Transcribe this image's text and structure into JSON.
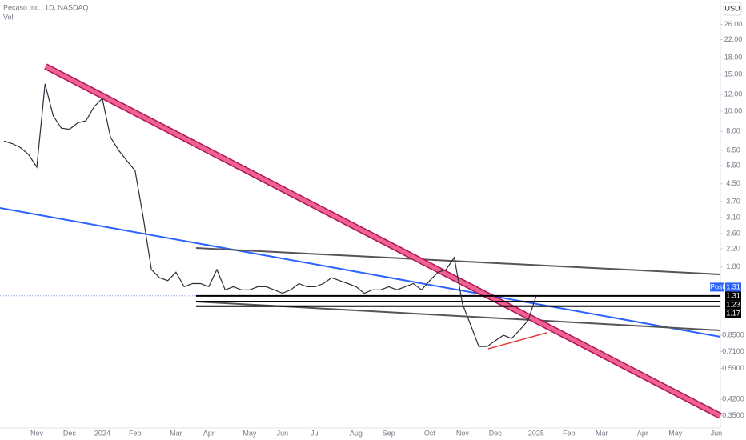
{
  "chart_data": {
    "type": "line",
    "title": "Pecaso Inc., 1D, NASDAQ",
    "subtitle": "Vol",
    "currency": "USD",
    "log_scale": true,
    "color": "#2a2e39",
    "categories": [
      null,
      null,
      null,
      null,
      "Nov",
      null,
      null,
      null,
      "Dec",
      null,
      null,
      null,
      "2024",
      null,
      null,
      null,
      "Feb",
      null,
      null,
      null,
      null,
      "Mar",
      null,
      null,
      null,
      "Apr",
      null,
      null,
      null,
      null,
      "May",
      null,
      null,
      null,
      "Jun",
      null,
      null,
      null,
      "Jul",
      null,
      null,
      null,
      null,
      "Aug",
      null,
      null,
      null,
      "Sep",
      null,
      null,
      null,
      null,
      "Oct",
      null,
      null,
      null,
      "Nov",
      null,
      null,
      null,
      "Dec",
      null,
      null,
      null,
      null,
      "2025",
      null,
      null,
      null,
      "Feb",
      null,
      null,
      null,
      "Mar",
      null,
      null,
      null,
      null,
      "Apr",
      null,
      null,
      null,
      "May",
      null,
      null,
      null,
      null,
      "Jun"
    ],
    "values": [
      7.2,
      7.0,
      6.7,
      6.2,
      5.4,
      13.5,
      9.5,
      8.3,
      8.2,
      8.8,
      9.0,
      10.5,
      11.5,
      7.5,
      6.5,
      5.8,
      5.2,
      3.1,
      1.75,
      1.6,
      1.55,
      1.7,
      1.45,
      1.5,
      1.5,
      1.45,
      1.75,
      1.4,
      1.45,
      1.4,
      1.4,
      1.45,
      1.45,
      1.4,
      1.35,
      1.4,
      1.5,
      1.45,
      1.45,
      1.5,
      1.6,
      1.55,
      1.5,
      1.45,
      1.35,
      1.4,
      1.4,
      1.45,
      1.4,
      1.45,
      1.5,
      1.4,
      1.55,
      1.7,
      1.75,
      2.0,
      1.2,
      0.95,
      0.75,
      0.75,
      0.8,
      0.85,
      0.82,
      0.9,
      1.0,
      1.31,
      null,
      null,
      null,
      null,
      null,
      null,
      null,
      null,
      null,
      null,
      null,
      null,
      null,
      null,
      null,
      null,
      null,
      null,
      null,
      null,
      null,
      null
    ],
    "ylim": [
      0.32,
      34
    ],
    "yticks": [
      {
        "value": 0.35,
        "label": "0.3500"
      },
      {
        "value": 0.42,
        "label": "0.4200"
      },
      {
        "value": 0.59,
        "label": "0.5900"
      },
      {
        "value": 0.71,
        "label": "0.7100"
      },
      {
        "value": 0.85,
        "label": "0.8500"
      },
      {
        "value": 1.8,
        "label": "1.80"
      },
      {
        "value": 2.2,
        "label": "2.20"
      },
      {
        "value": 2.6,
        "label": "2.60"
      },
      {
        "value": 3.1,
        "label": "3.10"
      },
      {
        "value": 3.7,
        "label": "3.70"
      },
      {
        "value": 4.5,
        "label": "4.50"
      },
      {
        "value": 5.5,
        "label": "5.50"
      },
      {
        "value": 6.5,
        "label": "6.50"
      },
      {
        "value": 8,
        "label": "8.00"
      },
      {
        "value": 10,
        "label": "10.00"
      },
      {
        "value": 12,
        "label": "12.00"
      },
      {
        "value": 15,
        "label": "15.00"
      },
      {
        "value": 18,
        "label": "18.00"
      },
      {
        "value": 22,
        "label": "22.00"
      },
      {
        "value": 26,
        "label": "26.00"
      }
    ],
    "last_label": "Post",
    "last_price": 1.31,
    "levels": [
      1.31,
      1.23,
      1.17
    ]
  }
}
